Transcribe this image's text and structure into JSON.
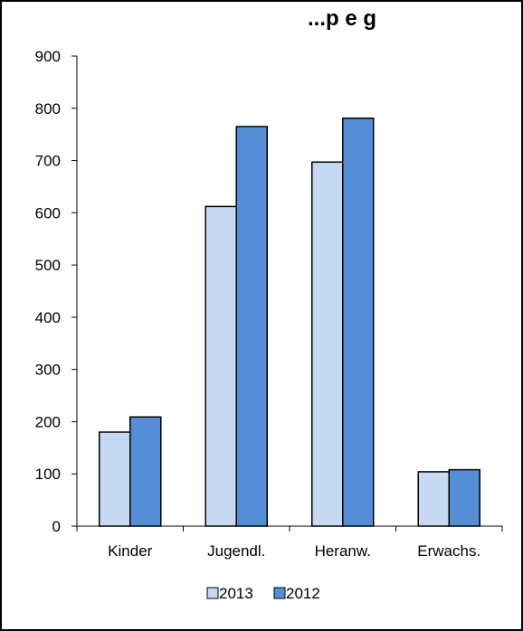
{
  "chart_data": {
    "type": "bar",
    "title": "...p e   g",
    "categories": [
      "Kinder",
      "Jugendl.",
      "Heranw.",
      "Erwachs."
    ],
    "series": [
      {
        "name": "2013",
        "values": [
          180,
          612,
          697,
          104
        ],
        "color": "#c6d9f1"
      },
      {
        "name": "2012",
        "values": [
          209,
          765,
          781,
          108
        ],
        "color": "#558ed5"
      }
    ],
    "ylim": [
      0,
      900
    ],
    "yticks": [
      "0",
      "100",
      "200",
      "300",
      "400",
      "500",
      "600",
      "700",
      "800",
      "900"
    ],
    "grid": false,
    "legend_position": "bottom",
    "bar_outline_color": "#000000",
    "axis_color": "#000000"
  }
}
